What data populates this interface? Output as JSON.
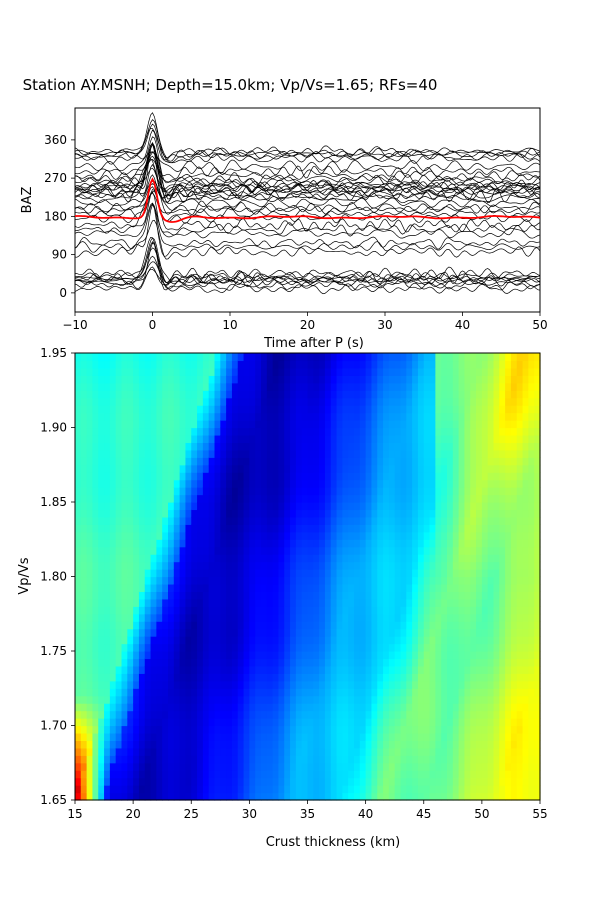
{
  "title": "Station AY.MSNH; Depth=15.0km; Vp/Vs=1.65; RFs=40",
  "chart_data": [
    {
      "type": "line",
      "title": "Station AY.MSNH; Depth=15.0km; Vp/Vs=1.65; RFs=40",
      "xlabel": "Time after P (s)",
      "ylabel": "BAZ",
      "xlim": [
        -10,
        50
      ],
      "ylim": [
        -45,
        435
      ],
      "xticks": [
        "−10",
        "0",
        "10",
        "20",
        "30",
        "40",
        "50"
      ],
      "yticks": [
        "0",
        "90",
        "180",
        "270",
        "360"
      ],
      "grid": false,
      "trace_count": 40,
      "trace_baz": [
        10,
        18,
        24,
        28,
        30,
        33,
        36,
        40,
        46,
        96,
        108,
        118,
        140,
        150,
        160,
        176,
        186,
        196,
        200,
        212,
        222,
        228,
        232,
        236,
        240,
        244,
        246,
        250,
        252,
        256,
        262,
        268,
        276,
        286,
        298,
        316,
        322,
        326,
        330,
        334
      ],
      "trace_color": "#000000",
      "stack": {
        "baz": 178,
        "color": "#ff0000",
        "peak_time": 0,
        "peak_amplitude": 90
      }
    },
    {
      "type": "heatmap",
      "xlabel": "Crust thickness (km)",
      "ylabel": "Vp/Vs",
      "xlim": [
        15,
        55
      ],
      "ylim": [
        1.65,
        1.95
      ],
      "xticks": [
        "15",
        "20",
        "25",
        "30",
        "35",
        "40",
        "45",
        "50",
        "55"
      ],
      "yticks": [
        "1.65",
        "1.70",
        "1.75",
        "1.80",
        "1.85",
        "1.90",
        "1.95"
      ],
      "colormap": "jet",
      "minimum": {
        "thickness": 25.5,
        "vpvs": 1.86
      },
      "maximum": {
        "thickness": 15.0,
        "vpvs": 1.65
      }
    }
  ]
}
